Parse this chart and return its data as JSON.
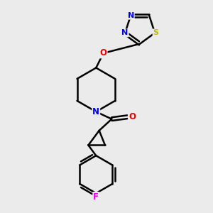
{
  "background_color": "#ebebeb",
  "bond_color": "#000000",
  "atom_colors": {
    "N": "#0000ee",
    "O": "#ee0000",
    "S": "#bbbb00",
    "F": "#ee00ee",
    "C": "#000000"
  },
  "bond_width": 1.8,
  "figsize": [
    3.0,
    3.0
  ],
  "dpi": 100
}
